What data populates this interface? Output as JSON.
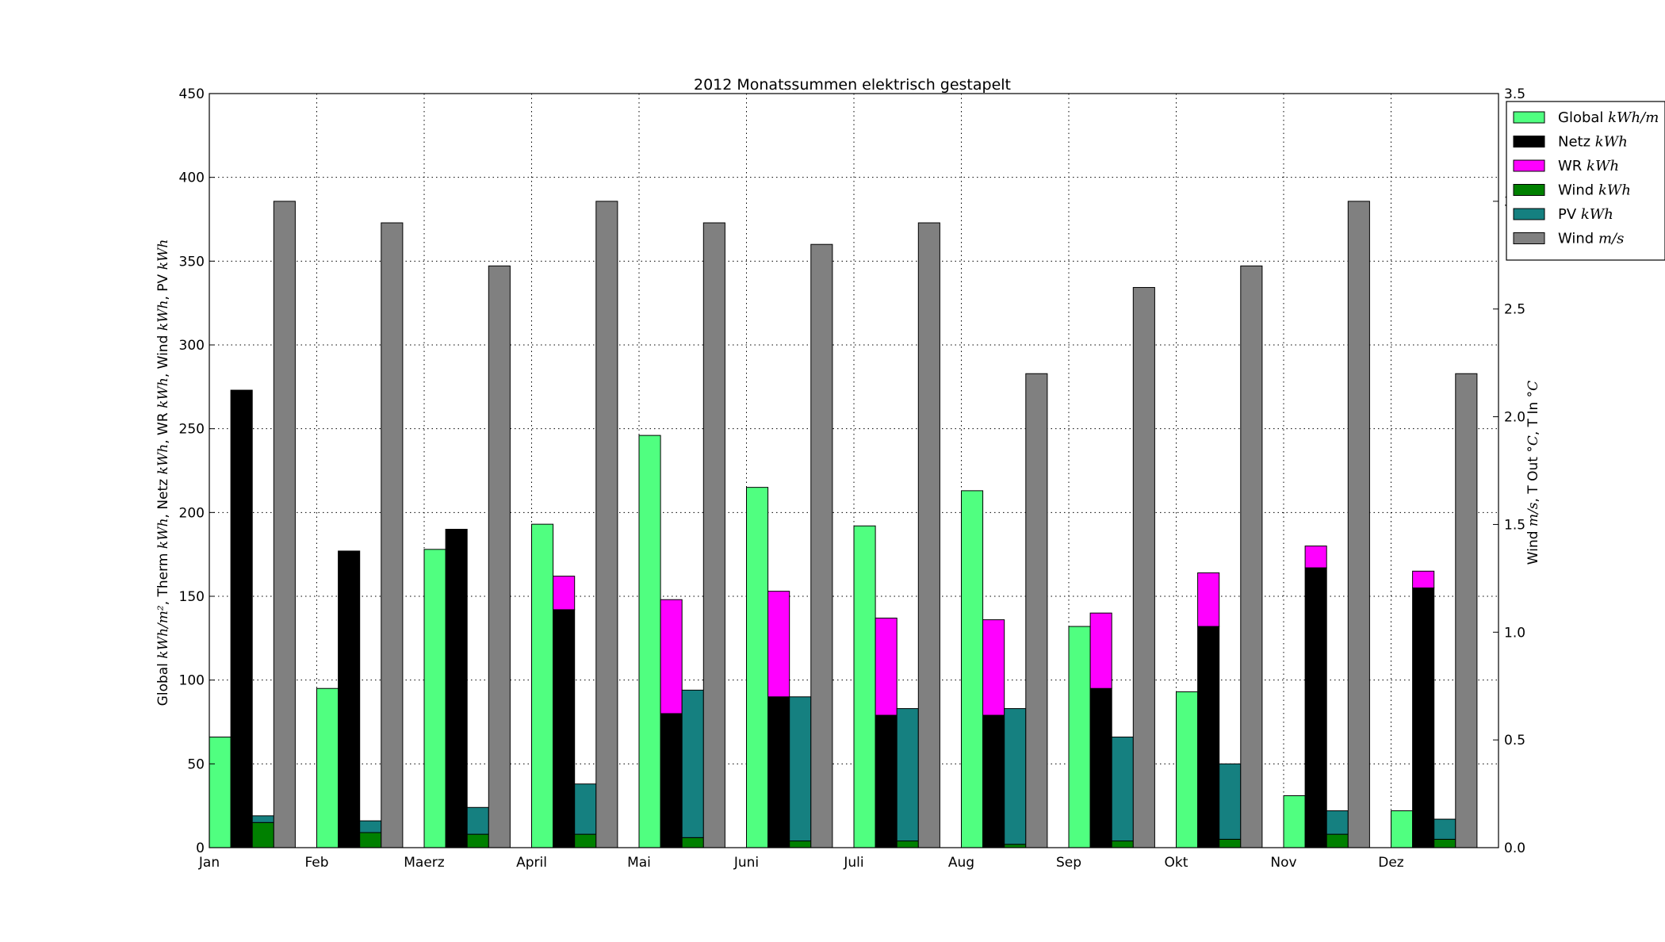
{
  "chart_data": {
    "type": "bar",
    "title": "2012 Monatssummen elektrisch gestapelt",
    "ylabel_left": [
      {
        "t": "Global ",
        "i": false
      },
      {
        "t": "kWh/m²",
        "i": true
      },
      {
        "t": ", Therm ",
        "i": false
      },
      {
        "t": "kWh",
        "i": true
      },
      {
        "t": ", Netz ",
        "i": false
      },
      {
        "t": "kWh",
        "i": true
      },
      {
        "t": ", WR ",
        "i": false
      },
      {
        "t": "kWh",
        "i": true
      },
      {
        "t": ", Wind ",
        "i": false
      },
      {
        "t": "kWh",
        "i": true
      },
      {
        "t": ", PV ",
        "i": false
      },
      {
        "t": "kWh",
        "i": true
      }
    ],
    "ylabel_right": [
      {
        "t": "Wind ",
        "i": false
      },
      {
        "t": "m/s",
        "i": true
      },
      {
        "t": ", T Out ",
        "i": false
      },
      {
        "t": "°C",
        "i": true
      },
      {
        "t": ", T In ",
        "i": false
      },
      {
        "t": "°C",
        "i": true
      }
    ],
    "categories": [
      "Jan",
      "Feb",
      "Maerz",
      "April",
      "Mai",
      "Juni",
      "Juli",
      "Aug",
      "Sep",
      "Okt",
      "Nov",
      "Dez"
    ],
    "ylim_left": [
      0,
      450
    ],
    "yticks_left": [
      "0",
      "50",
      "100",
      "150",
      "200",
      "250",
      "300",
      "350",
      "400",
      "450"
    ],
    "ylim_right": [
      0,
      3.5
    ],
    "yticks_right": [
      "0.0",
      "0.5",
      "1.0",
      "1.5",
      "2.0",
      "2.5",
      "3.0",
      "3.5"
    ],
    "grid": true,
    "legend_position": "top-right, outside",
    "series": [
      {
        "name": "Global",
        "unit": "kWh/m",
        "axis": "left",
        "color": "#50ff80",
        "values": [
          66,
          95,
          178,
          193,
          246,
          215,
          192,
          213,
          132,
          93,
          31,
          22
        ]
      },
      {
        "name": "Netz",
        "unit": "kWh",
        "axis": "left",
        "color": "#000000",
        "values": [
          273,
          177,
          190,
          142,
          80,
          90,
          79,
          79,
          95,
          132,
          167,
          155
        ]
      },
      {
        "name": "WR",
        "unit": "kWh",
        "axis": "left",
        "color": "#ff00ff",
        "stacked_on": "Netz",
        "values": [
          0,
          0,
          0,
          20,
          68,
          63,
          58,
          57,
          45,
          32,
          13,
          10
        ]
      },
      {
        "name": "Wind",
        "unit": "kWh",
        "axis": "left",
        "color": "#008000",
        "values": [
          15,
          9,
          8,
          8,
          6,
          4,
          4,
          2,
          4,
          5,
          8,
          5
        ]
      },
      {
        "name": "PV",
        "unit": "kWh",
        "axis": "left",
        "color": "#158080",
        "stacked_on": "Wind",
        "values": [
          4,
          7,
          16,
          30,
          88,
          86,
          79,
          81,
          62,
          45,
          14,
          12
        ]
      },
      {
        "name": "Wind",
        "unit": "m/s",
        "axis": "right",
        "color": "#808080",
        "values": [
          3.0,
          2.9,
          2.7,
          3.0,
          2.9,
          2.8,
          2.9,
          2.2,
          2.6,
          2.7,
          3.0,
          2.2
        ]
      }
    ]
  }
}
